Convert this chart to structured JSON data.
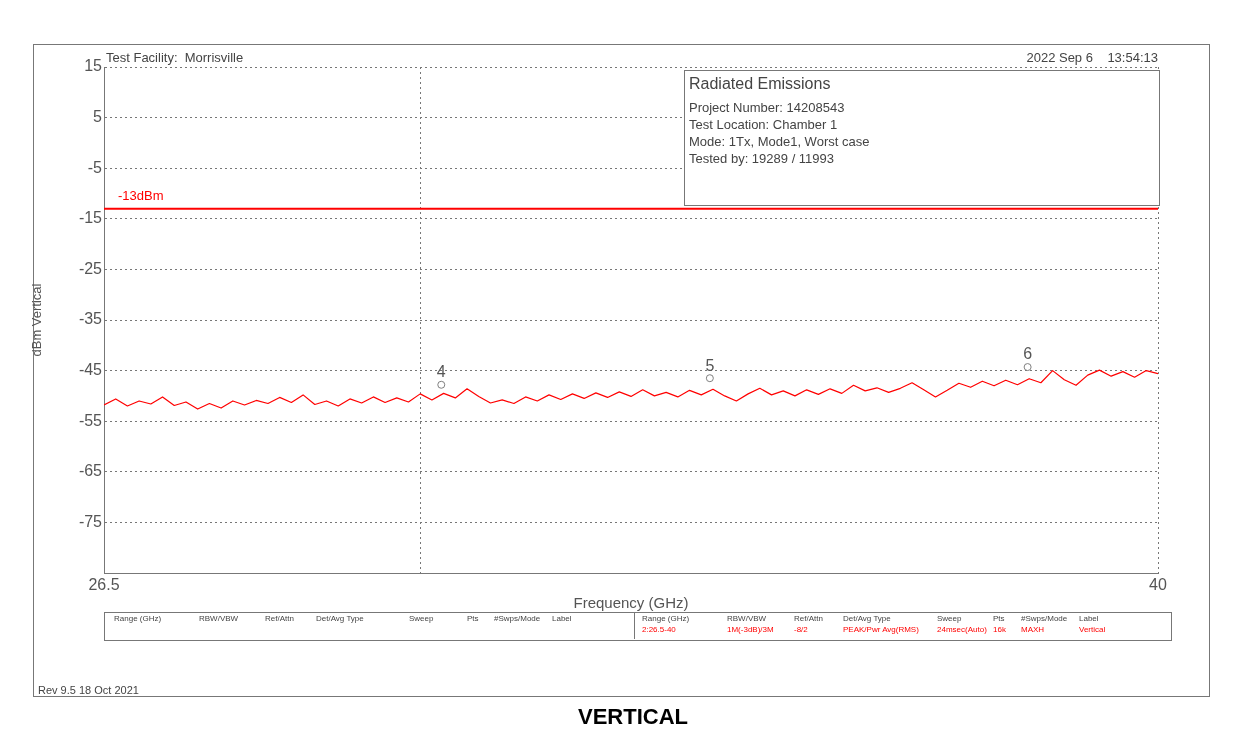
{
  "chart_data": {
    "type": "line",
    "title": "Radiated Emissions",
    "xlabel": "Frequency (GHz)",
    "ylabel": "dBm Vertical",
    "xlim": [
      26.5,
      40
    ],
    "xticks": [
      26.5,
      {
        "value": 30.56,
        "label": null
      },
      40
    ],
    "ylim": [
      -85,
      15
    ],
    "yticks": [
      15,
      5,
      -5,
      -15,
      -25,
      -35,
      -45,
      -55,
      -65,
      -75
    ],
    "grid": true,
    "legend": false,
    "marker": "none",
    "series": [
      {
        "color": "#ff0000",
        "x": [
          26.5,
          26.65,
          26.8,
          26.95,
          27.1,
          27.25,
          27.4,
          27.55,
          27.7,
          27.85,
          28.0,
          28.15,
          28.3,
          28.45,
          28.6,
          28.75,
          28.9,
          29.05,
          29.2,
          29.35,
          29.5,
          29.65,
          29.8,
          29.95,
          30.1,
          30.25,
          30.4,
          30.55,
          30.7,
          30.85,
          31.0,
          31.15,
          31.3,
          31.45,
          31.6,
          31.75,
          31.9,
          32.05,
          32.2,
          32.35,
          32.5,
          32.65,
          32.8,
          32.95,
          33.1,
          33.25,
          33.4,
          33.55,
          33.7,
          33.85,
          34.0,
          34.15,
          34.3,
          34.45,
          34.6,
          34.75,
          34.9,
          35.05,
          35.2,
          35.35,
          35.5,
          35.65,
          35.8,
          35.95,
          36.1,
          36.25,
          36.4,
          36.55,
          36.7,
          36.85,
          37.0,
          37.15,
          37.3,
          37.45,
          37.6,
          37.75,
          37.9,
          38.05,
          38.2,
          38.35,
          38.5,
          38.65,
          38.8,
          38.95,
          39.1,
          39.25,
          39.4,
          39.55,
          39.7,
          39.85,
          40.0
        ],
        "values": [
          -51.8,
          -50.6,
          -52.0,
          -51.0,
          -51.6,
          -50.2,
          -51.9,
          -51.2,
          -52.6,
          -51.5,
          -52.4,
          -51.0,
          -51.8,
          -50.9,
          -51.5,
          -50.3,
          -51.3,
          -49.8,
          -51.7,
          -51.0,
          -52.0,
          -50.6,
          -51.4,
          -50.2,
          -51.3,
          -50.4,
          -51.2,
          -49.6,
          -50.8,
          -49.5,
          -50.4,
          -48.6,
          -50.1,
          -51.4,
          -50.8,
          -51.5,
          -50.2,
          -51.0,
          -49.8,
          -50.7,
          -49.6,
          -50.5,
          -49.4,
          -50.3,
          -49.2,
          -50.1,
          -48.8,
          -50.0,
          -49.3,
          -50.2,
          -48.9,
          -49.8,
          -48.7,
          -50.0,
          -51.0,
          -49.6,
          -48.5,
          -49.8,
          -49.0,
          -50.0,
          -48.8,
          -49.7,
          -48.6,
          -49.5,
          -47.9,
          -49.0,
          -48.4,
          -49.3,
          -48.5,
          -47.4,
          -48.8,
          -50.2,
          -48.9,
          -47.5,
          -48.3,
          -47.1,
          -48.0,
          -46.9,
          -47.8,
          -46.6,
          -47.4,
          -45.0,
          -46.8,
          -47.9,
          -45.9,
          -44.9,
          -46.1,
          -45.2,
          -46.3,
          -45.0,
          -45.6
        ]
      },
      {
        "type": "scatter",
        "color": "#808080",
        "marker": "circle",
        "x": [
          30.82,
          34.26,
          38.33
        ],
        "values": [
          -47.8,
          -46.5,
          -44.3
        ]
      }
    ],
    "ref_lines": [
      {
        "axis": "y",
        "value": -13,
        "label": "-13dBm",
        "color": "#ff0000"
      }
    ],
    "annotations": [
      "Test Facility:  Morrisville",
      "2022 Sep 6    13:54:13",
      "Project Number: 14208543",
      "Test Location: Chamber 1",
      "Mode: 1Tx, Mode1, Worst case",
      "Tested by: 19289 / 11993",
      "Range (GHz)",
      "RBW/VBW",
      "Ref/Attn",
      "Det/Avg Type",
      "Sweep",
      "Pts",
      "#Swps/Mode",
      "Label",
      "Range (GHz)",
      "RBW/VBW",
      "Ref/Attn",
      "Det/Avg Type",
      "Sweep",
      "Pts",
      "#Swps/Mode",
      "Label",
      "2:26.5-40",
      "1M(-3dB)/3M",
      "-8/2",
      "PEAK/Pwr Avg(RMS)",
      "24msec(Auto)",
      "16k",
      "MAXH",
      "Vertical",
      "Rev 9.5 18 Oct 2021",
      "VERTICAL",
      {
        "text": "4",
        "x": 30.82,
        "y": -47.8
      },
      {
        "text": "5",
        "x": 34.26,
        "y": -46.5
      },
      {
        "text": "6",
        "x": 38.33,
        "y": -44.3
      }
    ]
  }
}
